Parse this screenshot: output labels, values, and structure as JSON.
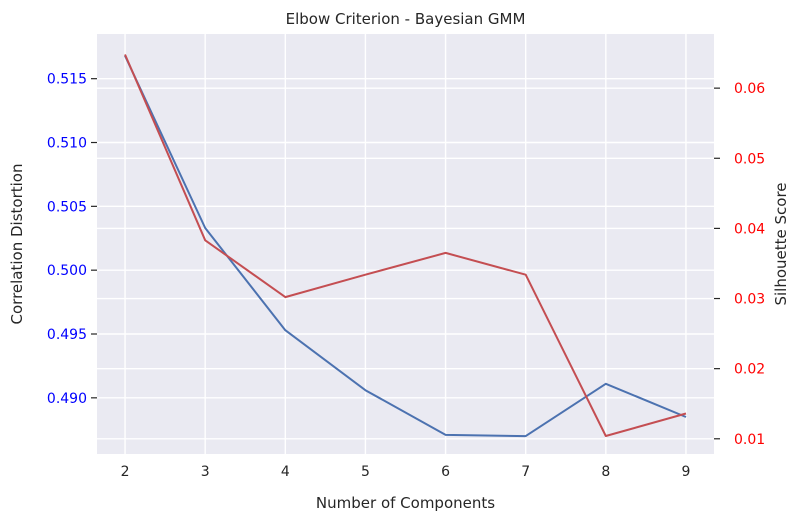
{
  "chart_data": {
    "type": "line",
    "title": "Elbow Criterion - Bayesian GMM",
    "xlabel": "Number of Components",
    "ylabel_left": "Correlation Distortion",
    "ylabel_right": "Silhouette Score",
    "x": [
      2,
      3,
      4,
      5,
      6,
      7,
      8,
      9
    ],
    "xlim": [
      1.65,
      9.35
    ],
    "ylim_left": [
      0.4856,
      0.5185
    ],
    "ylim_right": [
      0.00783,
      0.06772
    ],
    "yticks_left": [
      0.49,
      0.495,
      0.5,
      0.505,
      0.51,
      0.515
    ],
    "yticks_left_labels": [
      "0.490",
      "0.495",
      "0.500",
      "0.505",
      "0.510",
      "0.515"
    ],
    "yticks_right": [
      0.01,
      0.02,
      0.03,
      0.04,
      0.05,
      0.06
    ],
    "yticks_right_labels": [
      "0.01",
      "0.02",
      "0.03",
      "0.04",
      "0.05",
      "0.06"
    ],
    "grid": true,
    "series": [
      {
        "axis": "left",
        "color": "#4c72b0",
        "values": [
          0.5168,
          0.5033,
          0.4953,
          0.4906,
          0.4871,
          0.487,
          0.4911,
          0.4885
        ]
      },
      {
        "axis": "right",
        "color": "#c44e52",
        "values": [
          0.0648,
          0.0383,
          0.0302,
          0.0334,
          0.0365,
          0.0334,
          0.0104,
          0.0136
        ]
      }
    ],
    "colors": {
      "left_tick_color": "#0000ff",
      "right_tick_color": "#ff0000",
      "plot_background": "#eaeaf2",
      "grid": "#ffffff"
    }
  }
}
